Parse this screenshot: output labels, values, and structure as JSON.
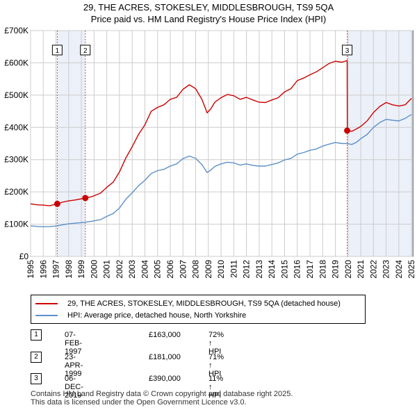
{
  "title_line1": "29, THE ACRES, STOKESLEY, MIDDLESBROUGH, TS9 5QA",
  "title_line2": "Price paid vs. HM Land Registry's House Price Index (HPI)",
  "chart_data": {
    "type": "line",
    "title": "29, THE ACRES, STOKESLEY, MIDDLESBROUGH, TS9 5QA — Price paid vs. HM Land Registry's House Price Index (HPI)",
    "xlabel": "",
    "ylabel": "",
    "xlim": [
      1995,
      2025.1
    ],
    "ylim": [
      0,
      700000
    ],
    "grid": true,
    "y_ticks": [
      {
        "value": 0,
        "label": "£0"
      },
      {
        "value": 100000,
        "label": "£100K"
      },
      {
        "value": 200000,
        "label": "£200K"
      },
      {
        "value": 300000,
        "label": "£300K"
      },
      {
        "value": 400000,
        "label": "£400K"
      },
      {
        "value": 500000,
        "label": "£500K"
      },
      {
        "value": 600000,
        "label": "£600K"
      },
      {
        "value": 700000,
        "label": "£700K"
      }
    ],
    "x_ticks": [
      1995,
      1996,
      1997,
      1998,
      1999,
      2000,
      2001,
      2002,
      2003,
      2004,
      2005,
      2006,
      2007,
      2008,
      2009,
      2010,
      2011,
      2012,
      2013,
      2014,
      2015,
      2016,
      2017,
      2018,
      2019,
      2020,
      2021,
      2022,
      2023,
      2024,
      2025
    ],
    "series": [
      {
        "name": "29, THE ACRES, STOKESLEY, MIDDLESBROUGH, TS9 5QA (detached house)",
        "color": "#cc0000",
        "x": [
          1995.0,
          1995.5,
          1996.0,
          1996.5,
          1997.1,
          1997.5,
          1998.0,
          1998.5,
          1999.31,
          1999.8,
          2000.5,
          2001.0,
          2001.5,
          2002.0,
          2002.5,
          2003.0,
          2003.5,
          2004.0,
          2004.5,
          2005.0,
          2005.5,
          2006.0,
          2006.5,
          2007.0,
          2007.5,
          2008.0,
          2008.5,
          2008.9,
          2009.2,
          2009.5,
          2010.0,
          2010.5,
          2011.0,
          2011.5,
          2012.0,
          2012.5,
          2013.0,
          2013.5,
          2014.0,
          2014.5,
          2015.0,
          2015.5,
          2016.0,
          2016.5,
          2017.0,
          2017.5,
          2018.0,
          2018.5,
          2019.0,
          2019.5,
          2019.93,
          2019.94,
          2020.3,
          2020.7,
          2021.0,
          2021.5,
          2022.0,
          2022.5,
          2023.0,
          2023.5,
          2024.0,
          2024.5,
          2025.0
        ],
        "values": [
          163000,
          160000,
          159000,
          157000,
          163000,
          168000,
          172000,
          175000,
          181000,
          185000,
          196000,
          214000,
          230000,
          262000,
          305000,
          340000,
          378000,
          408000,
          450000,
          462000,
          470000,
          487000,
          493000,
          518000,
          532000,
          520000,
          486000,
          445000,
          458000,
          478000,
          492000,
          502000,
          498000,
          487000,
          493000,
          485000,
          478000,
          477000,
          485000,
          492000,
          510000,
          520000,
          545000,
          553000,
          563000,
          572000,
          585000,
          598000,
          605000,
          602000,
          607000,
          390000,
          388000,
          396000,
          403000,
          420000,
          446000,
          465000,
          477000,
          470000,
          466000,
          470000,
          490000
        ]
      },
      {
        "name": "HPI: Average price, detached house, North Yorkshire",
        "color": "#5b8fc9",
        "x": [
          1995.0,
          1995.5,
          1996.0,
          1996.5,
          1997.1,
          1997.5,
          1998.0,
          1998.5,
          1999.31,
          1999.8,
          2000.5,
          2001.0,
          2001.5,
          2002.0,
          2002.5,
          2003.0,
          2003.5,
          2004.0,
          2004.5,
          2005.0,
          2005.5,
          2006.0,
          2006.5,
          2007.0,
          2007.5,
          2008.0,
          2008.5,
          2008.9,
          2009.2,
          2009.5,
          2010.0,
          2010.5,
          2011.0,
          2011.5,
          2012.0,
          2012.5,
          2013.0,
          2013.5,
          2014.0,
          2014.5,
          2015.0,
          2015.5,
          2016.0,
          2016.5,
          2017.0,
          2017.5,
          2018.0,
          2018.5,
          2019.0,
          2019.5,
          2019.93,
          2020.3,
          2020.7,
          2021.0,
          2021.5,
          2022.0,
          2022.5,
          2023.0,
          2023.5,
          2024.0,
          2024.5,
          2025.0
        ],
        "values": [
          95000,
          93000,
          92000,
          92500,
          94500,
          98000,
          101000,
          103000,
          106000,
          109000,
          114000,
          124000,
          133000,
          150000,
          177000,
          197000,
          219000,
          236000,
          257000,
          266000,
          270000,
          280000,
          287000,
          303000,
          311000,
          304000,
          284000,
          260000,
          268000,
          279000,
          287000,
          292000,
          290000,
          283000,
          287000,
          282000,
          280000,
          280000,
          285000,
          290000,
          299000,
          304000,
          317000,
          322000,
          329000,
          333000,
          342000,
          348000,
          353000,
          350000,
          350000,
          347000,
          355000,
          365000,
          378000,
          400000,
          415000,
          425000,
          422000,
          420000,
          428000,
          440000
        ]
      }
    ],
    "sales": [
      {
        "label": "1",
        "x": 1997.1,
        "value": 163000
      },
      {
        "label": "2",
        "x": 1999.31,
        "value": 181000
      },
      {
        "label": "3",
        "x": 2019.93,
        "value": 390000
      }
    ]
  },
  "legend": {
    "property_label": "29, THE ACRES, STOKESLEY, MIDDLESBROUGH, TS9 5QA (detached house)",
    "hpi_label": "HPI: Average price, detached house, North Yorkshire"
  },
  "transactions": [
    {
      "num": "1",
      "date": "07-FEB-1997",
      "price": "£163,000",
      "hpi": "72% ↑ HPI"
    },
    {
      "num": "2",
      "date": "23-APR-1999",
      "price": "£181,000",
      "hpi": "71% ↑ HPI"
    },
    {
      "num": "3",
      "date": "06-DEC-2019",
      "price": "£390,000",
      "hpi": "11% ↑ HPI"
    }
  ],
  "footer_line1": "Contains HM Land Registry data © Crown copyright and database right 2025.",
  "footer_line2": "This data is licensed under the Open Government Licence v3.0."
}
